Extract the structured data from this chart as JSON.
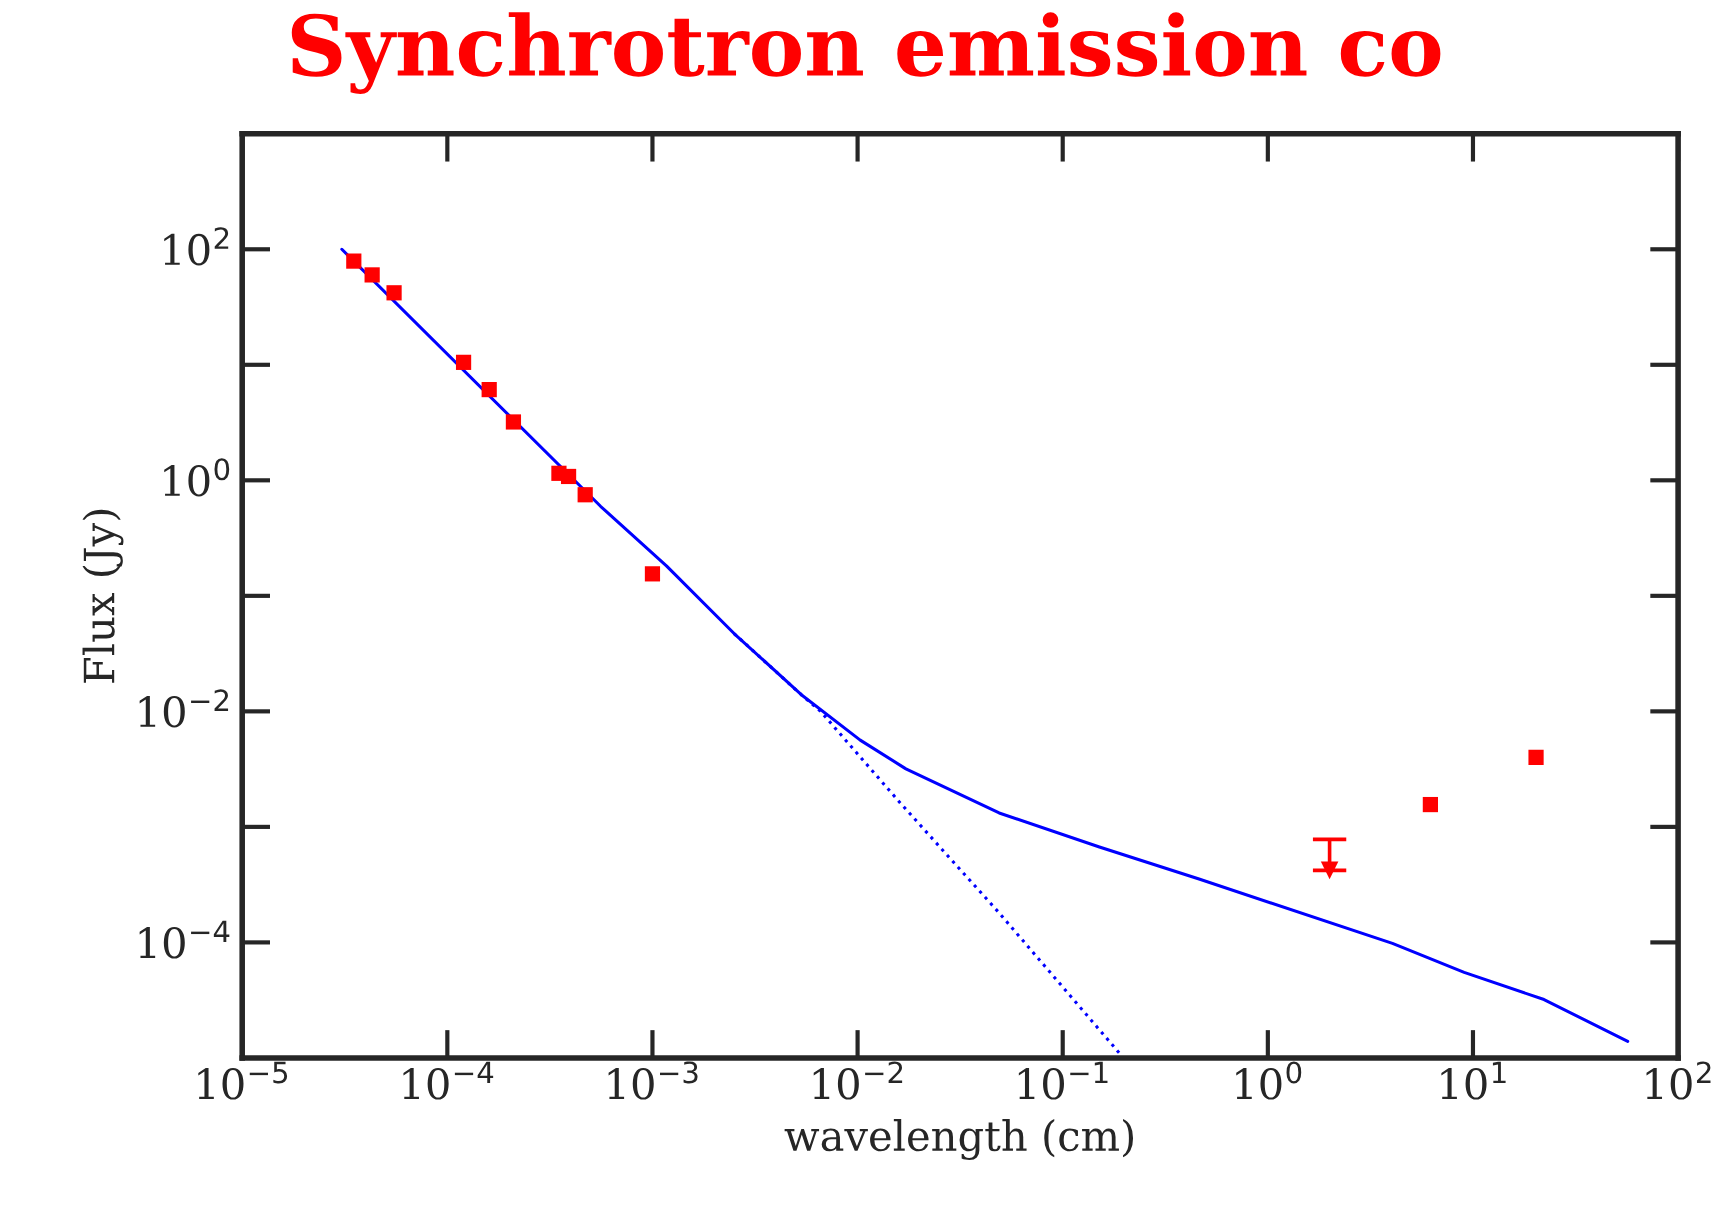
{
  "chart_data": {
    "type": "scatter",
    "title": "Synchrotron emission co",
    "xlabel": "wavelength (cm)",
    "ylabel": "Flux (Jy)",
    "log": "xy",
    "xlim": [
      1e-05,
      100
    ],
    "ylim": [
      1e-05,
      1000
    ],
    "xticks": [
      {
        "value": 1e-05,
        "label": "10$^{−5}$"
      },
      {
        "value": 0.0001,
        "label": "10$^{−4}$"
      },
      {
        "value": 0.001,
        "label": "10$^{−3}$"
      },
      {
        "value": 0.01,
        "label": "10$^{−2}$"
      },
      {
        "value": 0.1,
        "label": "10$^{−1}$"
      },
      {
        "value": 1,
        "label": "10$^{0}$"
      },
      {
        "value": 10,
        "label": "10$^{1}$"
      },
      {
        "value": 100,
        "label": "10$^{2}$"
      }
    ],
    "yticks": [
      {
        "value": 0.0001,
        "label": "10$^{−4}$"
      },
      {
        "value": 0.001,
        "label": null
      },
      {
        "value": 0.01,
        "label": "10$^{−2}$"
      },
      {
        "value": 0.1,
        "label": null
      },
      {
        "value": 1,
        "label": "10$^{0}$"
      },
      {
        "value": 10,
        "label": null
      },
      {
        "value": 100,
        "label": "10$^{2}$"
      }
    ],
    "grid": false,
    "legend": false,
    "series": [
      {
        "type": "line",
        "color": "#0000ff",
        "line_style": "solid",
        "marker": "none",
        "x": [
          3.06e-05,
          0.00056,
          0.00117,
          0.0025,
          0.0053,
          0.0103,
          0.0172,
          0.049,
          0.151,
          0.462,
          4.05,
          9.06,
          22.2,
          56.8
        ],
        "values": [
          100,
          0.593,
          0.182,
          0.0472,
          0.014,
          0.00564,
          0.00318,
          0.00132,
          0.00067,
          0.000354,
          9.8e-05,
          5.5e-05,
          3.2e-05,
          1.39e-05
        ]
      },
      {
        "type": "line",
        "color": "#0000ff",
        "line_style": "dotted",
        "marker": "none",
        "x": [
          0.0025,
          0.0053,
          0.0066,
          0.0161,
          0.049,
          0.189
        ],
        "values": [
          0.0472,
          0.014,
          0.01,
          0.00162,
          0.00018,
          1.1e-05
        ]
      },
      {
        "color": "#ff0000",
        "marker": "square",
        "x": [
          3.5e-05,
          4.3e-05,
          5.5e-05,
          0.00012,
          0.00016,
          0.00021,
          0.00035,
          0.00039,
          0.00047,
          0.001,
          6.2,
          20.3
        ],
        "values": [
          79,
          60,
          42,
          10.5,
          6.1,
          3.2,
          1.15,
          1.08,
          0.75,
          0.155,
          0.00156,
          0.004
        ]
      },
      {
        "color": "#ff0000",
        "marker": "triangle",
        "x": [
          2.0
        ],
        "values": [
          0.00042
        ],
        "errors": [
          [
            0.00042,
            0.00078
          ]
        ]
      }
    ]
  }
}
